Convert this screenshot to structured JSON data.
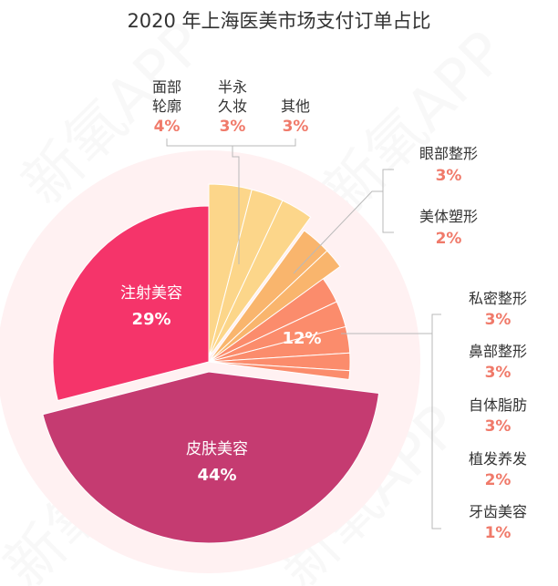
{
  "chart_data": {
    "type": "pie",
    "title": "2020 年上海医美市场支付订单占比",
    "watermark": "新氧APP",
    "slices": [
      {
        "label": "面部轮廓",
        "value": 4,
        "display": "4%",
        "color": "#fcd68a"
      },
      {
        "label": "半永久妆",
        "value": 3,
        "display": "3%",
        "color": "#fcd68a"
      },
      {
        "label": "其他",
        "value": 3,
        "display": "3%",
        "color": "#fcd68a"
      },
      {
        "label": "眼部整形",
        "value": 3,
        "display": "3%",
        "color": "#f9b56d"
      },
      {
        "label": "美体塑形",
        "value": 2,
        "display": "2%",
        "color": "#f9b56d"
      },
      {
        "label": "私密整形",
        "value": 3,
        "display": "3%",
        "color": "#fb8c6c"
      },
      {
        "label": "鼻部整形",
        "value": 3,
        "display": "3%",
        "color": "#fb8c6c"
      },
      {
        "label": "自体脂肪",
        "value": 3,
        "display": "3%",
        "color": "#fb8c6c"
      },
      {
        "label": "植发养发",
        "value": 2,
        "display": "2%",
        "color": "#fb8c6c"
      },
      {
        "label": "牙齿美容",
        "value": 1,
        "display": "1%",
        "color": "#fb8c6c"
      },
      {
        "label": "皮肤美容",
        "value": 44,
        "display": "44%",
        "color": "#c53b71"
      },
      {
        "label": "注射美容",
        "value": 29,
        "display": "29%",
        "color": "#f5346a"
      }
    ],
    "group_labels": [
      {
        "display": "12%",
        "value": 12
      }
    ]
  }
}
